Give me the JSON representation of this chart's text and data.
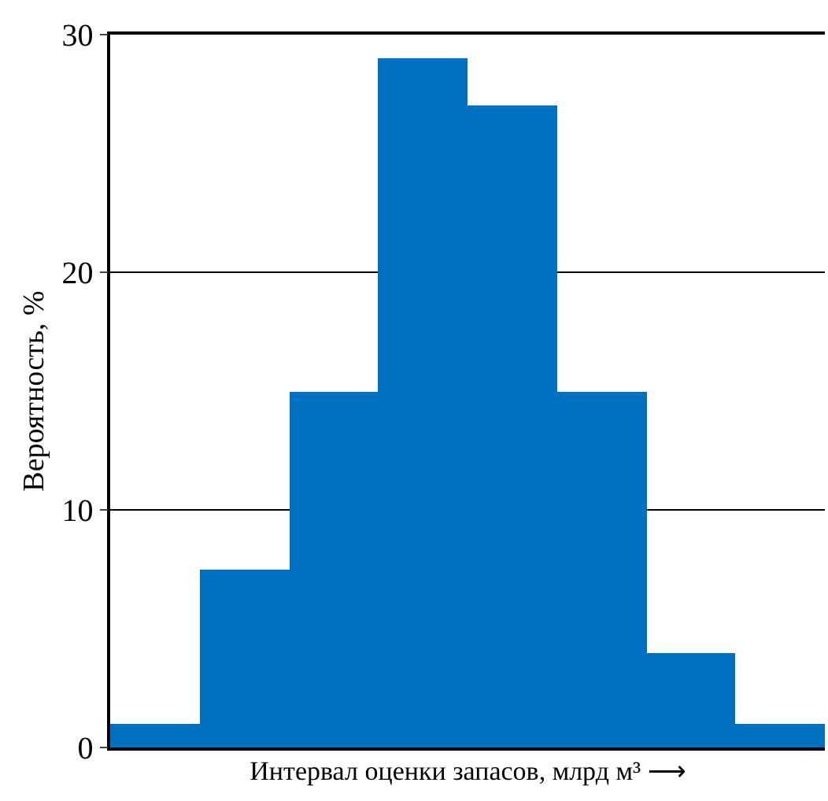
{
  "chart_data": {
    "type": "bar",
    "xlabel": "Интервал оценки запасов, млрд м³ ⟶",
    "ylabel": "Вероятность, %",
    "categories": [
      null,
      null,
      null,
      null,
      null,
      null,
      null,
      null
    ],
    "values": [
      1,
      7.5,
      15,
      29,
      27,
      15,
      4,
      1
    ],
    "color": "#0070c0",
    "ylim": [
      0,
      30
    ],
    "yticks": [
      0,
      10,
      20,
      30
    ],
    "grid": "y"
  }
}
